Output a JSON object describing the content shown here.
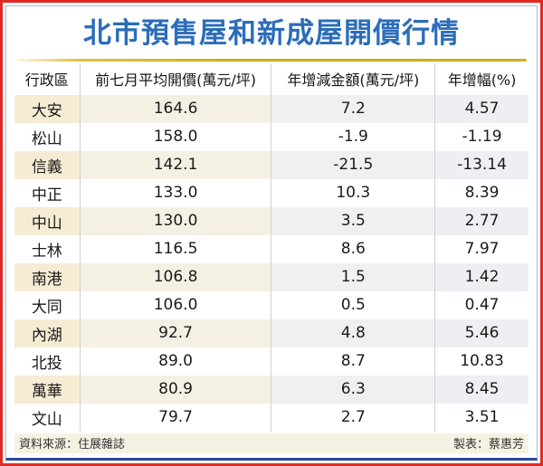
{
  "title": "北市預售屋和新成屋開價行情",
  "table": {
    "columns": [
      "行政區",
      "前七月平均開價(萬元/坪)",
      "年增減金額(萬元/坪)",
      "年增幅(%)"
    ],
    "rows": [
      {
        "district": "大安",
        "avg_price": "164.6",
        "yoy_amount": "7.2",
        "yoy_pct": "4.57"
      },
      {
        "district": "松山",
        "avg_price": "158.0",
        "yoy_amount": "-1.9",
        "yoy_pct": "-1.19"
      },
      {
        "district": "信義",
        "avg_price": "142.1",
        "yoy_amount": "-21.5",
        "yoy_pct": "-13.14"
      },
      {
        "district": "中正",
        "avg_price": "133.0",
        "yoy_amount": "10.3",
        "yoy_pct": "8.39"
      },
      {
        "district": "中山",
        "avg_price": "130.0",
        "yoy_amount": "3.5",
        "yoy_pct": "2.77"
      },
      {
        "district": "士林",
        "avg_price": "116.5",
        "yoy_amount": "8.6",
        "yoy_pct": "7.97"
      },
      {
        "district": "南港",
        "avg_price": "106.8",
        "yoy_amount": "1.5",
        "yoy_pct": "1.42"
      },
      {
        "district": "大同",
        "avg_price": "106.0",
        "yoy_amount": "0.5",
        "yoy_pct": "0.47"
      },
      {
        "district": "內湖",
        "avg_price": "92.7",
        "yoy_amount": "4.8",
        "yoy_pct": "5.46"
      },
      {
        "district": "北投",
        "avg_price": "89.0",
        "yoy_amount": "8.7",
        "yoy_pct": "10.83"
      },
      {
        "district": "萬華",
        "avg_price": "80.9",
        "yoy_amount": "6.3",
        "yoy_pct": "8.45"
      },
      {
        "district": "文山",
        "avg_price": "79.7",
        "yoy_amount": "2.7",
        "yoy_pct": "3.51"
      }
    ]
  },
  "footer": {
    "source": "資料來源：住展雜誌",
    "credit": "製表：蔡惠芳"
  },
  "colors": {
    "outer_border": "#e02a25",
    "inner_border": "#aab9ce",
    "bottom_accent": "#2b4899",
    "title_blue": "#2c6db8",
    "gold_rule": "#cfa91c",
    "stripe_cream": "#f5ecd3",
    "stripe_gray": "#eeeff2",
    "footer_bg": "#f6f2e3"
  }
}
